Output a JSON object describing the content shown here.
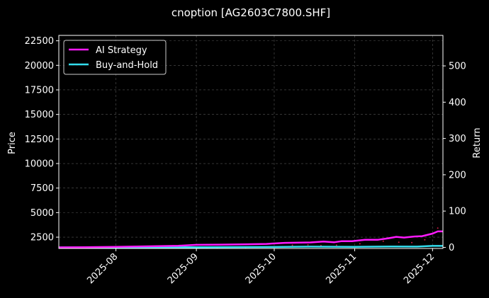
{
  "chart_data": {
    "type": "line",
    "title": "cnoption [AG2603C7800.SHF]",
    "ylabel_left": "Price",
    "ylabel_right": "Return",
    "x_ticks": [
      "2025-08",
      "2025-09",
      "2025-10",
      "2025-11",
      "2025-12"
    ],
    "x_range": [
      "2025-07-10",
      "2025-12-05"
    ],
    "left_axis": {
      "ylim": [
        1350,
        23050
      ],
      "ticks": [
        2500,
        5000,
        7500,
        10000,
        12500,
        15000,
        17500,
        20000,
        22500
      ]
    },
    "right_axis": {
      "ylim": [
        -3,
        584
      ],
      "ticks": [
        0,
        100,
        200,
        300,
        400,
        500
      ]
    },
    "grid": true,
    "legend": {
      "placement": "top-left",
      "entries": [
        "AI Strategy",
        "Buy-and-Hold"
      ]
    },
    "colors": {
      "background": "#000000",
      "ai_strategy": "#ff1aff",
      "buy_and_hold": "#33ddee",
      "markers": "#ff2255",
      "grid": "#555555",
      "text": "#ffffff"
    },
    "series": [
      {
        "name": "AI Strategy",
        "axis": "right",
        "x": [
          "2025-07-10",
          "2025-07-20",
          "2025-08-01",
          "2025-08-15",
          "2025-08-25",
          "2025-09-01",
          "2025-09-10",
          "2025-09-20",
          "2025-09-28",
          "2025-10-05",
          "2025-10-15",
          "2025-10-20",
          "2025-10-24",
          "2025-10-27",
          "2025-10-31",
          "2025-11-05",
          "2025-11-10",
          "2025-11-14",
          "2025-11-17",
          "2025-11-20",
          "2025-11-24",
          "2025-11-27",
          "2025-12-01",
          "2025-12-03",
          "2025-12-05"
        ],
        "values": [
          0,
          0.5,
          1.5,
          3,
          4.5,
          7,
          7.5,
          8.5,
          9.5,
          12.5,
          13.5,
          16,
          14,
          17,
          17,
          21,
          21,
          25,
          29,
          27,
          30,
          31,
          38,
          44,
          44
        ]
      },
      {
        "name": "Buy-and-Hold",
        "axis": "right",
        "x": [
          "2025-07-10",
          "2025-08-01",
          "2025-09-01",
          "2025-10-01",
          "2025-10-15",
          "2025-11-01",
          "2025-11-15",
          "2025-11-25",
          "2025-12-01",
          "2025-12-05"
        ],
        "values": [
          0,
          0,
          0.5,
          1,
          2,
          1.5,
          2.5,
          2,
          4,
          4
        ]
      }
    ],
    "markers": {
      "axis": "right",
      "x": [
        "2025-07-18",
        "2025-07-22",
        "2025-07-27",
        "2025-08-12",
        "2025-08-16",
        "2025-08-23",
        "2025-09-05",
        "2025-09-09",
        "2025-09-20",
        "2025-10-08",
        "2025-10-14",
        "2025-10-19",
        "2025-10-25",
        "2025-11-03",
        "2025-11-12",
        "2025-11-18",
        "2025-11-23",
        "2025-11-28",
        "2025-12-03"
      ],
      "values": [
        -2,
        -2,
        -2,
        -2,
        -2,
        -2,
        -1,
        -1,
        0,
        6,
        7,
        5,
        6,
        10,
        17,
        14,
        13,
        21,
        53
      ]
    }
  }
}
